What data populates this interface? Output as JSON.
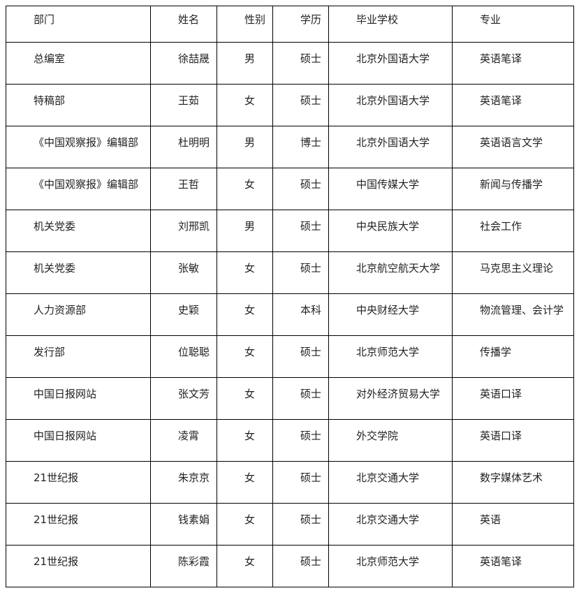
{
  "table": {
    "headers": [
      "部门",
      "姓名",
      "性别",
      "学历",
      "毕业学校",
      "专业"
    ],
    "rows": [
      [
        "总编室",
        "徐喆晟",
        "男",
        "硕士",
        "北京外国语大学",
        "英语笔译"
      ],
      [
        "特稿部",
        "王茹",
        "女",
        "硕士",
        "北京外国语大学",
        "英语笔译"
      ],
      [
        "《中国观察报》编辑部",
        "杜明明",
        "男",
        "博士",
        "北京外国语大学",
        "英语语言文学"
      ],
      [
        "《中国观察报》编辑部",
        "王哲",
        "女",
        "硕士",
        "中国传媒大学",
        "新闻与传播学"
      ],
      [
        "机关党委",
        "刘邢凯",
        "男",
        "硕士",
        "中央民族大学",
        "社会工作"
      ],
      [
        "机关党委",
        "张敏",
        "女",
        "硕士",
        "北京航空航天大学",
        "马克思主义理论"
      ],
      [
        "人力资源部",
        "史颖",
        "女",
        "本科",
        "中央财经大学",
        "物流管理、会计学"
      ],
      [
        "发行部",
        "位聪聪",
        "女",
        "硕士",
        "北京师范大学",
        "传播学"
      ],
      [
        "中国日报网站",
        "张文芳",
        "女",
        "硕士",
        "对外经济贸易大学",
        "英语口译"
      ],
      [
        "中国日报网站",
        "凌霄",
        "女",
        "硕士",
        "外交学院",
        "英语口译"
      ],
      [
        "21世纪报",
        "朱京京",
        "女",
        "硕士",
        "北京交通大学",
        "数字媒体艺术"
      ],
      [
        "21世纪报",
        "钱素娟",
        "女",
        "硕士",
        "北京交通大学",
        "英语"
      ],
      [
        "21世纪报",
        "陈彩霞",
        "女",
        "硕士",
        "北京师范大学",
        "英语笔译"
      ]
    ]
  }
}
